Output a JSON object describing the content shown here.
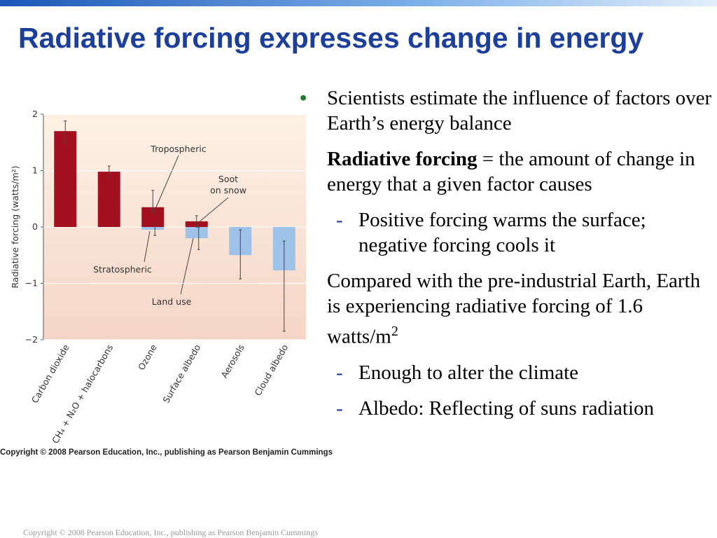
{
  "slide": {
    "title": "Radiative forcing expresses change in energy",
    "figure_credit": "Copyright © 2008 Pearson Education, Inc., publishing as Pearson Benjamin Cummings",
    "footer": "Copyright © 2008 Pearson Education, Inc., publishing as Pearson Benjamin Cummings",
    "bullet": "Scientists estimate the influence of factors over Earth’s energy balance",
    "definition_term": "Radiative forcing",
    "definition_rest": " = the amount of change in energy that a given factor causes",
    "sub_1": "Positive forcing warms the surface; negative forcing cools it",
    "comparison": "Compared with the pre-industrial Earth, Earth is experiencing radiative forcing of 1.6 watts/m",
    "comparison_sup": "2",
    "sub_2": "Enough to alter the climate",
    "sub_3": "Albedo:  Reflecting of suns radiation"
  },
  "chart_data": {
    "type": "bar",
    "y_label": "Radiative forcing (watts/m²)",
    "categories": [
      "Carbon dioxide",
      "CH₄ + N₂O + halocarbons",
      "Ozone",
      "Surface albedo",
      "Aerosols",
      "Cloud albedo"
    ],
    "series": [
      {
        "color": "#a3101f",
        "values": [
          1.7,
          0.98,
          0.35,
          0.1,
          null,
          null
        ],
        "ranges": [
          [
            1.5,
            1.88
          ],
          [
            0.88,
            1.08
          ],
          [
            0.25,
            0.65
          ],
          [
            0,
            0.2
          ],
          null,
          null
        ]
      },
      {
        "color": "#9fc3e8",
        "values": [
          null,
          null,
          -0.05,
          -0.2,
          -0.5,
          -0.77
        ],
        "ranges": [
          null,
          null,
          [
            -0.15,
            0.05
          ],
          [
            -0.4,
            0
          ],
          [
            -0.92,
            -0.05
          ],
          [
            -1.85,
            -0.25
          ]
        ]
      }
    ],
    "ylim": [
      -2,
      2
    ],
    "yticks": [
      {
        "value": -2,
        "label": "−2"
      },
      {
        "value": -1,
        "label": "−1"
      },
      0,
      1,
      2
    ],
    "annotations": [
      {
        "lines": [
          "Tropospheric"
        ]
      },
      {
        "lines": [
          "Soot",
          "on snow"
        ]
      },
      {
        "lines": [
          "Stratospheric"
        ]
      },
      {
        "lines": [
          "Land use"
        ]
      }
    ]
  }
}
